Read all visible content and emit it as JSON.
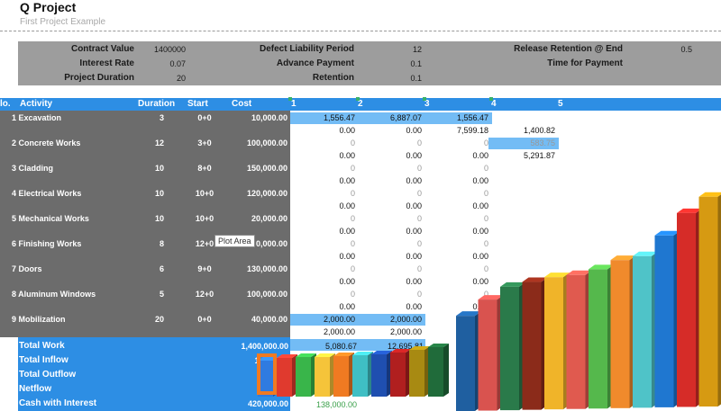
{
  "header": {
    "title": "Q Project",
    "subtitle": "First Project Example"
  },
  "params": {
    "contract_value_label": "Contract Value",
    "contract_value": "1400000",
    "interest_rate_label": "Interest Rate",
    "interest_rate": "0.07",
    "project_duration_label": "Project Duration",
    "project_duration": "20",
    "defect_liability_label": "Defect Liability Period",
    "defect_liability": "12",
    "advance_payment_label": "Advance Payment",
    "advance_payment": "0.1",
    "retention_label": "Retention",
    "retention": "0.1",
    "release_retention_label": "Release Retention @ End",
    "release_retention": "0.5",
    "time_for_payment_label": "Time for Payment"
  },
  "columns": {
    "no": "lo.",
    "activity": "Activity",
    "duration": "Duration",
    "start": "Start",
    "cost": "Cost",
    "m1": "1",
    "m2": "2",
    "m3": "3",
    "m4": "4",
    "m5": "5"
  },
  "activities": [
    {
      "name": "1 Excavation",
      "duration": "3",
      "start": "0+0",
      "cost": "10,000.00"
    },
    {
      "name": "2 Concrete Works",
      "duration": "12",
      "start": "3+0",
      "cost": "100,000.00"
    },
    {
      "name": "3 Cladding",
      "duration": "10",
      "start": "8+0",
      "cost": "150,000.00"
    },
    {
      "name": "4 Electrical Works",
      "duration": "10",
      "start": "10+0",
      "cost": "120,000.00"
    },
    {
      "name": "5 Mechanical Works",
      "duration": "10",
      "start": "10+0",
      "cost": "20,000.00"
    },
    {
      "name": "6 Finishing Works",
      "duration": "8",
      "start": "12+0",
      "cost": "0,000.00"
    },
    {
      "name": "7 Doors",
      "duration": "6",
      "start": "9+0",
      "cost": "130,000.00"
    },
    {
      "name": "8 Aluminum Windows",
      "duration": "5",
      "start": "12+0",
      "cost": "100,000.00"
    },
    {
      "name": "9 Mobilization",
      "duration": "20",
      "start": "0+0",
      "cost": "40,000.00"
    }
  ],
  "grid": {
    "r1_a": [
      "1,556.47",
      "6,887.07",
      "1,556.47",
      ""
    ],
    "r1_b": [
      "0.00",
      "0.00",
      "7,599.18",
      "1,400.82"
    ],
    "r2_a": [
      "0",
      "0",
      "0",
      "583.75"
    ],
    "r2_b": [
      "0.00",
      "0.00",
      "0.00",
      "5,291.87"
    ],
    "zero": "0",
    "zero_dec": "0.00",
    "r9_a": [
      "2,000.00",
      "2,000.00"
    ],
    "r9_b": [
      "2,000.00",
      "2,000.00"
    ]
  },
  "totals": {
    "total_work_label": "Total Work",
    "total_work": "1,400,000.00",
    "total_inflow_label": "Total Inflow",
    "total_inflow": "1,40",
    "total_outflow_label": "Total Outflow",
    "total_outflow": "98",
    "netflow_label": "Netflow",
    "netflow": "42",
    "cash_label": "Cash with Interest",
    "cash": "420,000.00",
    "tw_m1": "5,080.67",
    "tw_m2": "12,695.81",
    "cash_m1": "138,000.00"
  },
  "tooltip": {
    "text": "Plot Area"
  },
  "chart_data": {
    "type": "bar",
    "title": "",
    "xlabel": "",
    "ylabel": "",
    "back_series": {
      "values": [
        108,
        126,
        140,
        145,
        150,
        152,
        158,
        168,
        172,
        195,
        220,
        238,
        255,
        265,
        282,
        300,
        318,
        335,
        350,
        365,
        378,
        390,
        400
      ],
      "colors": [
        "#1f5fa0",
        "#d9534f",
        "#2a7a4a",
        "#8b2b1a",
        "#f0b429",
        "#e05a4f",
        "#55b84c",
        "#f08a2c",
        "#4fc3c8",
        "#1f77d0",
        "#d62c28",
        "#d69a12",
        "#2d8f4c",
        "#cf5a1a",
        "#5cc7c7",
        "#1f6fc0",
        "#2aa5d0",
        "#2d8f4c",
        "#f07a22",
        "#2d8f4c",
        "#e06020",
        "#2d8f4c",
        "#1f77d0"
      ]
    },
    "front_series": {
      "values": [
        40,
        43,
        44,
        44,
        45,
        46,
        47,
        49,
        52,
        55
      ],
      "colors": [
        "#2f7be0",
        "#e03a2e",
        "#39b54a",
        "#f5c43a",
        "#f07a22",
        "#3fbfc4",
        "#1f4fb0",
        "#b01f1f",
        "#a88a12",
        "#206b3a"
      ]
    }
  }
}
